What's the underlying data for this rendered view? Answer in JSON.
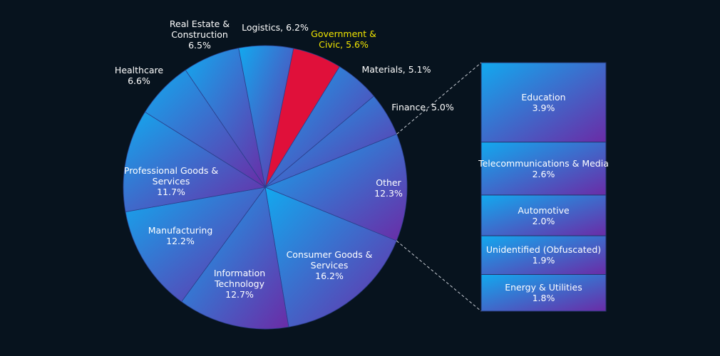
{
  "chart_data": {
    "type": "pie",
    "categories": [
      "Government & Civic",
      "Materials",
      "Finance",
      "Other",
      "Consumer Goods & Services",
      "Information Technology",
      "Manufacturing",
      "Professional Goods & Services",
      "Healthcare",
      "Real Estate & Construction",
      "Logistics"
    ],
    "values": [
      5.6,
      5.1,
      5.0,
      12.3,
      16.2,
      12.7,
      12.2,
      11.7,
      6.6,
      6.5,
      6.2
    ],
    "value_labels": [
      "5.6%",
      "5.1%",
      "5.0%",
      "12.3%",
      "16.2%",
      "12.7%",
      "12.2%",
      "11.7%",
      "6.6%",
      "6.5%",
      "6.2%"
    ],
    "label_separator": ", ",
    "gradient_colors": [
      "#12a9ef",
      "#6b2ba6"
    ],
    "highlight_category": "Government & Civic",
    "highlight_color": "#e0103a",
    "highlight_label_color": "#f2e600",
    "breakdown_of": "Other",
    "bar": {
      "type": "bar",
      "categories": [
        "Education",
        "Telecommunications & Media",
        "Automotive",
        "Unidentified (Obfuscated)",
        "Energy & Utilities"
      ],
      "values": [
        3.9,
        2.6,
        2.0,
        1.9,
        1.8
      ],
      "value_labels": [
        "3.9%",
        "2.6%",
        "2.0%",
        "1.9%",
        "1.8%"
      ]
    }
  }
}
